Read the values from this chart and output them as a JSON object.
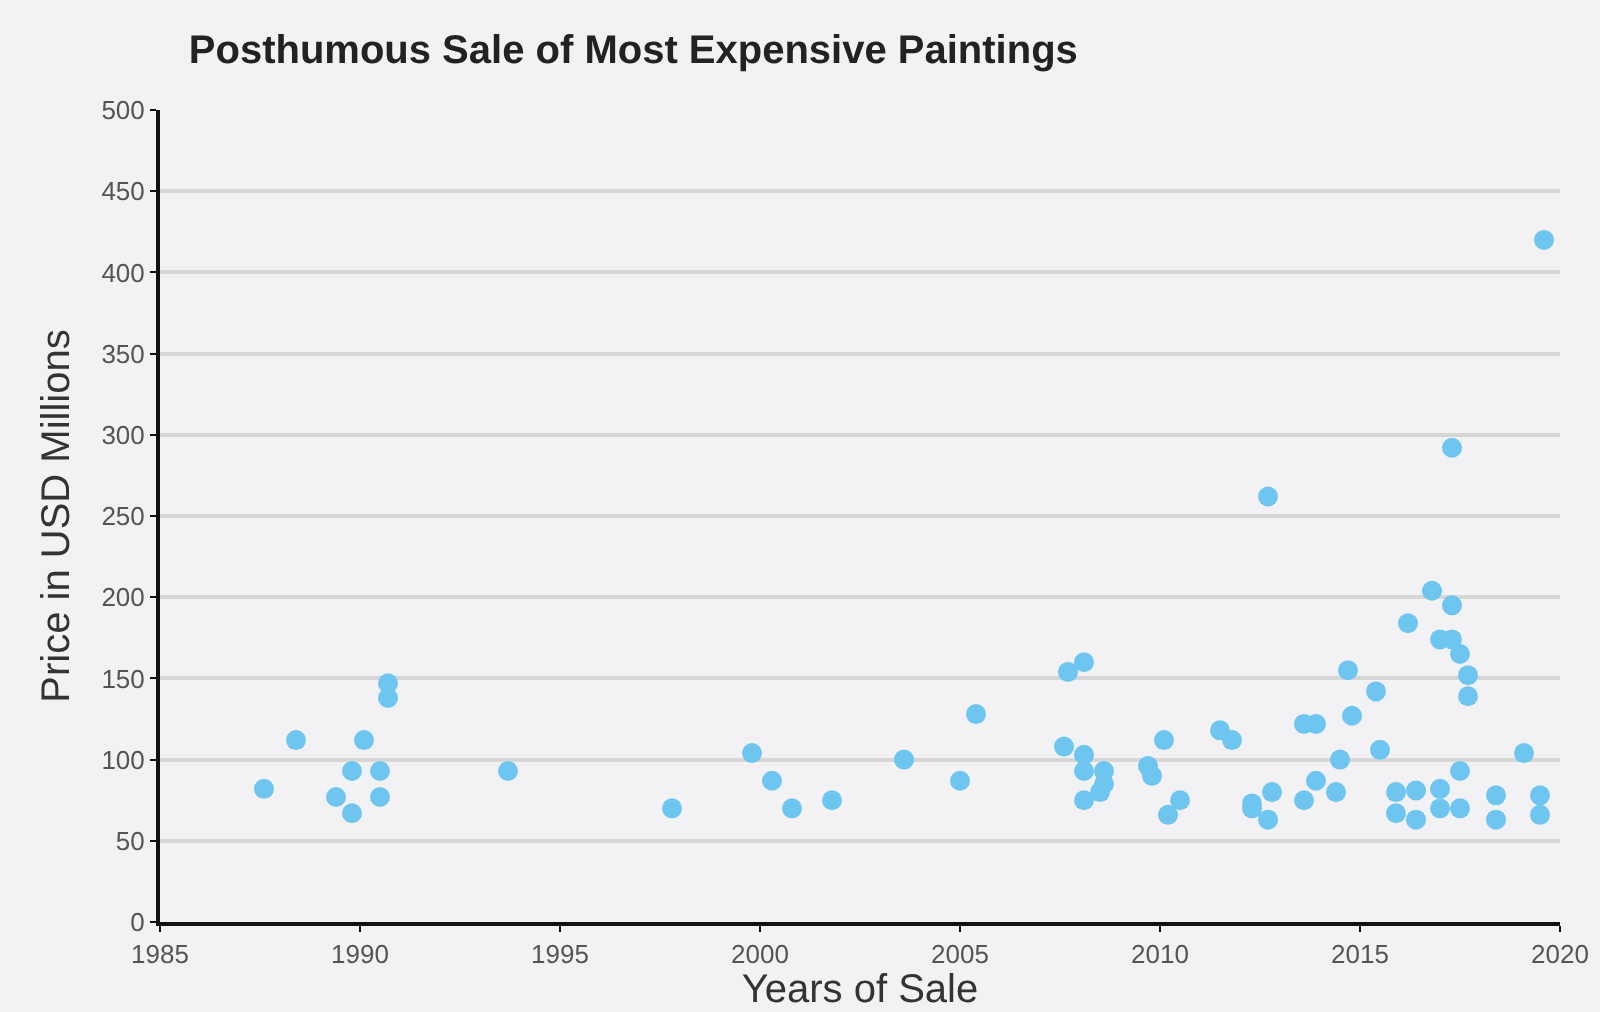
{
  "chart_data": {
    "type": "scatter",
    "title": "Posthumous Sale of Most Expensive Paintings",
    "xlabel": "Years of Sale",
    "ylabel": "Price in USD Millions",
    "x": [
      1987.6,
      1988.4,
      1989.4,
      1989.8,
      1989.8,
      1990.1,
      1990.5,
      1990.5,
      1990.7,
      1990.7,
      1993.7,
      1997.8,
      1999.8,
      2000.3,
      2000.8,
      2001.8,
      2003.6,
      2005.0,
      2005.4,
      2007.6,
      2007.7,
      2008.1,
      2008.1,
      2008.1,
      2008.1,
      2008.5,
      2008.6,
      2008.6,
      2009.7,
      2009.8,
      2010.1,
      2010.2,
      2010.5,
      2011.5,
      2011.8,
      2012.3,
      2012.3,
      2012.7,
      2012.7,
      2012.8,
      2013.6,
      2013.6,
      2013.9,
      2013.9,
      2014.4,
      2014.5,
      2014.7,
      2014.8,
      2015.4,
      2015.5,
      2015.9,
      2015.9,
      2016.2,
      2016.4,
      2016.4,
      2016.8,
      2017.0,
      2017.0,
      2017.0,
      2017.3,
      2017.3,
      2017.3,
      2017.5,
      2017.5,
      2017.5,
      2017.7,
      2017.7,
      2018.4,
      2018.4,
      2019.1,
      2019.5,
      2019.5,
      2019.6
    ],
    "values": [
      82,
      112,
      77,
      67,
      93,
      112,
      93,
      77,
      138,
      147,
      93,
      70,
      104,
      87,
      70,
      75,
      100,
      87,
      128,
      108,
      154,
      160,
      103,
      93,
      75,
      80,
      85,
      93,
      96,
      90,
      112,
      66,
      75,
      118,
      112,
      73,
      70,
      262,
      63,
      80,
      75,
      122,
      122,
      87,
      80,
      100,
      155,
      127,
      142,
      106,
      80,
      67,
      184,
      81,
      63,
      204,
      174,
      82,
      70,
      292,
      195,
      174,
      165,
      93,
      70,
      152,
      139,
      78,
      63,
      104,
      78,
      66,
      420
    ],
    "color": "#6ec6f0",
    "marker": "circle",
    "xlim": [
      1985,
      2020
    ],
    "xticks": [
      1985,
      1990,
      1995,
      2000,
      2005,
      2010,
      2015,
      2020
    ],
    "ylim": [
      0,
      500
    ],
    "yticks": [
      0,
      50,
      100,
      150,
      200,
      250,
      300,
      350,
      400,
      450,
      500
    ],
    "grid": "y"
  }
}
